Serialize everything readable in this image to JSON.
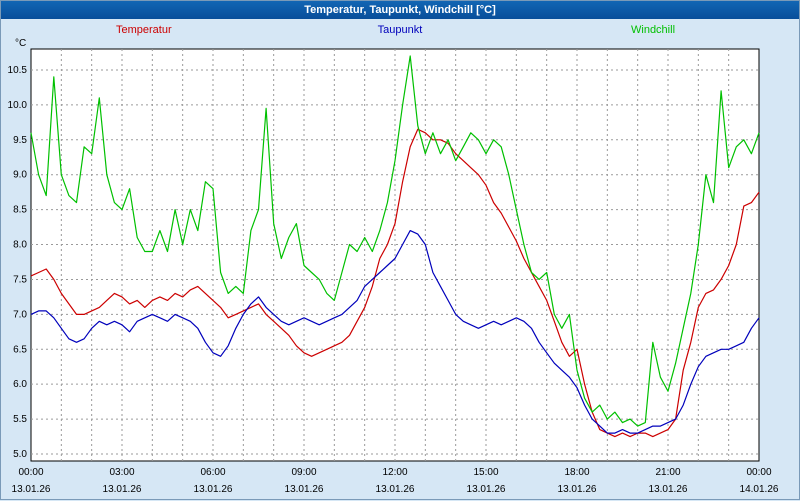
{
  "window": {
    "title": "Temperatur, Taupunkt, Windchill [°C]"
  },
  "chart_data": {
    "type": "line",
    "title": "Temperatur, Taupunkt, Windchill [°C]",
    "ylabel": "°C",
    "ylim": [
      4.9,
      10.8
    ],
    "yticks": [
      5.0,
      5.5,
      6.0,
      6.5,
      7.0,
      7.5,
      8.0,
      8.5,
      9.0,
      9.5,
      10.0,
      10.5
    ],
    "xlim": [
      0,
      24
    ],
    "x_step_hours": 0.25,
    "grid": "dashed gray, hourly vertical lines, 0.5°C horizontal lines",
    "legend_position": "top",
    "xticks": [
      {
        "hour": 0,
        "time": "00:00",
        "date": "13.01.26"
      },
      {
        "hour": 3,
        "time": "03:00",
        "date": "13.01.26"
      },
      {
        "hour": 6,
        "time": "06:00",
        "date": "13.01.26"
      },
      {
        "hour": 9,
        "time": "09:00",
        "date": "13.01.26"
      },
      {
        "hour": 12,
        "time": "12:00",
        "date": "13.01.26"
      },
      {
        "hour": 15,
        "time": "15:00",
        "date": "13.01.26"
      },
      {
        "hour": 18,
        "time": "18:00",
        "date": "13.01.26"
      },
      {
        "hour": 21,
        "time": "21:00",
        "date": "13.01.26"
      },
      {
        "hour": 24,
        "time": "00:00",
        "date": "14.01.26"
      }
    ],
    "series": [
      {
        "name": "Temperatur",
        "color": "#cc0000",
        "values": [
          7.55,
          7.6,
          7.65,
          7.5,
          7.3,
          7.15,
          7.0,
          7.0,
          7.05,
          7.1,
          7.2,
          7.3,
          7.25,
          7.15,
          7.2,
          7.1,
          7.2,
          7.25,
          7.2,
          7.3,
          7.25,
          7.35,
          7.4,
          7.3,
          7.2,
          7.1,
          6.95,
          7.0,
          7.05,
          7.1,
          7.15,
          7.0,
          6.9,
          6.8,
          6.7,
          6.55,
          6.45,
          6.4,
          6.45,
          6.5,
          6.55,
          6.6,
          6.7,
          6.9,
          7.1,
          7.4,
          7.8,
          8.0,
          8.3,
          8.9,
          9.4,
          9.65,
          9.6,
          9.5,
          9.5,
          9.45,
          9.3,
          9.2,
          9.1,
          9.0,
          8.85,
          8.6,
          8.45,
          8.25,
          8.05,
          7.8,
          7.6,
          7.4,
          7.2,
          6.9,
          6.6,
          6.4,
          6.5,
          6.0,
          5.6,
          5.35,
          5.3,
          5.25,
          5.3,
          5.25,
          5.3,
          5.3,
          5.25,
          5.3,
          5.35,
          5.5,
          6.2,
          6.6,
          7.1,
          7.3,
          7.35,
          7.5,
          7.7,
          8.0,
          8.55,
          8.6,
          8.75
        ]
      },
      {
        "name": "Taupunkt",
        "color": "#0000bb",
        "values": [
          7.0,
          7.05,
          7.05,
          6.95,
          6.8,
          6.65,
          6.6,
          6.65,
          6.8,
          6.9,
          6.85,
          6.9,
          6.85,
          6.75,
          6.9,
          6.95,
          7.0,
          6.95,
          6.9,
          7.0,
          6.95,
          6.9,
          6.8,
          6.6,
          6.45,
          6.4,
          6.55,
          6.8,
          7.0,
          7.15,
          7.25,
          7.1,
          7.0,
          6.9,
          6.85,
          6.9,
          6.95,
          6.9,
          6.85,
          6.9,
          6.95,
          7.0,
          7.1,
          7.2,
          7.4,
          7.5,
          7.6,
          7.7,
          7.8,
          8.0,
          8.2,
          8.15,
          8.0,
          7.6,
          7.4,
          7.2,
          7.0,
          6.9,
          6.85,
          6.8,
          6.85,
          6.9,
          6.85,
          6.9,
          6.95,
          6.9,
          6.8,
          6.6,
          6.45,
          6.3,
          6.2,
          6.1,
          5.95,
          5.7,
          5.5,
          5.4,
          5.3,
          5.3,
          5.35,
          5.3,
          5.3,
          5.35,
          5.4,
          5.4,
          5.45,
          5.5,
          5.7,
          6.0,
          6.25,
          6.4,
          6.45,
          6.5,
          6.5,
          6.55,
          6.6,
          6.8,
          6.95
        ]
      },
      {
        "name": "Windchill",
        "color": "#00c000",
        "values": [
          9.6,
          9.0,
          8.7,
          10.4,
          9.0,
          8.7,
          8.6,
          9.4,
          9.3,
          10.1,
          9.0,
          8.6,
          8.5,
          8.8,
          8.1,
          7.9,
          7.9,
          8.2,
          7.9,
          8.5,
          8.0,
          8.5,
          8.2,
          8.9,
          8.8,
          7.6,
          7.3,
          7.4,
          7.3,
          8.2,
          8.5,
          9.95,
          8.3,
          7.8,
          8.1,
          8.3,
          7.7,
          7.6,
          7.5,
          7.3,
          7.2,
          7.6,
          8.0,
          7.9,
          8.1,
          7.9,
          8.2,
          8.6,
          9.2,
          10.0,
          10.7,
          9.7,
          9.3,
          9.6,
          9.3,
          9.5,
          9.2,
          9.4,
          9.6,
          9.5,
          9.3,
          9.5,
          9.4,
          9.0,
          8.5,
          8.0,
          7.6,
          7.5,
          7.6,
          7.0,
          6.8,
          7.0,
          6.2,
          5.8,
          5.6,
          5.7,
          5.5,
          5.6,
          5.45,
          5.5,
          5.4,
          5.45,
          6.6,
          6.1,
          5.9,
          6.3,
          6.8,
          7.3,
          8.0,
          9.0,
          8.6,
          10.2,
          9.1,
          9.4,
          9.5,
          9.3,
          9.6
        ]
      }
    ]
  }
}
